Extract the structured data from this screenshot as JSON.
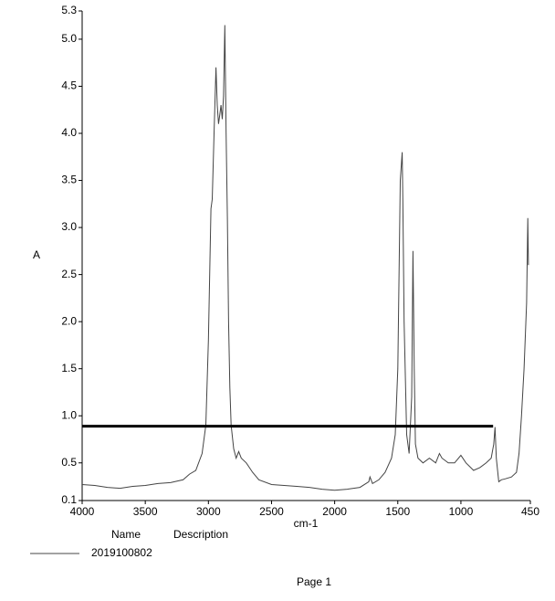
{
  "chart_data": {
    "type": "line",
    "y_label": "A",
    "x_label": "cm-1",
    "xlim": [
      4000,
      450
    ],
    "ylim": [
      0.1,
      5.3
    ],
    "xticks": [
      4000,
      3500,
      3000,
      2500,
      2000,
      1500,
      1000,
      450
    ],
    "yticks": [
      0.1,
      0.5,
      {
        "value": 1,
        "label": "1.0"
      },
      1.5,
      {
        "value": 2,
        "label": "2.0"
      },
      2.5,
      {
        "value": 3,
        "label": "3.0"
      },
      3.5,
      {
        "value": 4,
        "label": "4.0"
      },
      4.5,
      {
        "value": 5,
        "label": "5.0"
      },
      5.3
    ],
    "legend_headers": [
      "Name",
      "Description"
    ],
    "series": [
      {
        "name": "2019100802",
        "color": "#444444",
        "x": [
          4000,
          3900,
          3800,
          3700,
          3600,
          3500,
          3400,
          3300,
          3200,
          3150,
          3100,
          3050,
          3020,
          3000,
          2980,
          2970,
          2955,
          2940,
          2930,
          2920,
          2910,
          2900,
          2890,
          2880,
          2870,
          2860,
          2850,
          2840,
          2830,
          2820,
          2800,
          2780,
          2760,
          2740,
          2700,
          2650,
          2600,
          2500,
          2400,
          2300,
          2200,
          2100,
          2000,
          1900,
          1800,
          1730,
          1720,
          1700,
          1650,
          1600,
          1550,
          1520,
          1500,
          1480,
          1470,
          1465,
          1460,
          1450,
          1430,
          1410,
          1390,
          1380,
          1370,
          1360,
          1340,
          1300,
          1250,
          1200,
          1170,
          1150,
          1100,
          1050,
          1000,
          960,
          900,
          850,
          800,
          760,
          740,
          730,
          720,
          700,
          680,
          650,
          600,
          560,
          540,
          520,
          500,
          480,
          470,
          465
        ],
        "values": [
          0.27,
          0.26,
          0.24,
          0.23,
          0.25,
          0.26,
          0.28,
          0.29,
          0.32,
          0.38,
          0.42,
          0.6,
          0.9,
          1.8,
          3.2,
          3.3,
          4.0,
          4.7,
          4.3,
          4.1,
          4.2,
          4.3,
          4.15,
          4.4,
          5.15,
          4.0,
          3.1,
          2.0,
          1.3,
          0.9,
          0.65,
          0.55,
          0.62,
          0.55,
          0.5,
          0.4,
          0.32,
          0.27,
          0.26,
          0.25,
          0.24,
          0.22,
          0.21,
          0.22,
          0.24,
          0.3,
          0.35,
          0.28,
          0.32,
          0.4,
          0.55,
          0.8,
          1.5,
          3.5,
          3.7,
          3.8,
          3.3,
          2.0,
          0.8,
          0.6,
          1.2,
          2.75,
          1.5,
          0.7,
          0.55,
          0.5,
          0.55,
          0.5,
          0.6,
          0.55,
          0.5,
          0.5,
          0.58,
          0.5,
          0.42,
          0.45,
          0.5,
          0.55,
          0.7,
          0.88,
          0.55,
          0.3,
          0.32,
          0.33,
          0.35,
          0.4,
          0.6,
          1.0,
          1.5,
          2.2,
          3.1,
          2.6
        ]
      }
    ],
    "reference_line": {
      "value": 0.89,
      "x": [
        4000,
        745
      ],
      "color": "#000000"
    },
    "footer": "Page 1"
  }
}
